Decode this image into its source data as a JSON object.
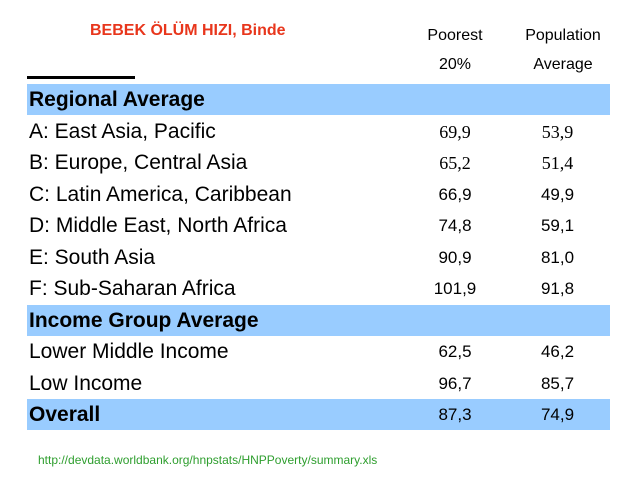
{
  "title": "BEBEK ÖLÜM HIZI, Binde",
  "columns": {
    "poorest_line1": "Poorest",
    "poorest_line2": "20%",
    "population_line1": "Population",
    "population_line2": "Average"
  },
  "chart_data": {
    "type": "table",
    "title": "BEBEK ÖLÜM HIZI, Binde",
    "columns": [
      "Poorest 20%",
      "Population Average"
    ],
    "rows": [
      {
        "label": "Regional Average",
        "section": true,
        "v1": "",
        "v2": ""
      },
      {
        "label": "A: East Asia, Pacific",
        "v1": "69,9",
        "v2": "53,9",
        "serif": true
      },
      {
        "label": "B: Europe, Central Asia",
        "v1": "65,2",
        "v2": "51,4",
        "serif": true
      },
      {
        "label": "C: Latin America, Caribbean",
        "v1": "66,9",
        "v2": "49,9"
      },
      {
        "label": "D: Middle East, North Africa",
        "v1": "74,8",
        "v2": "59,1"
      },
      {
        "label": "E: South Asia",
        "v1": "90,9",
        "v2": "81,0"
      },
      {
        "label": "F: Sub-Saharan Africa",
        "v1": "101,9",
        "v2": "91,8"
      },
      {
        "label": "Income Group Average",
        "section": true,
        "v1": "",
        "v2": ""
      },
      {
        "label": "Lower Middle Income",
        "v1": "62,5",
        "v2": "46,2"
      },
      {
        "label": "Low Income",
        "v1": "96,7",
        "v2": "85,7"
      },
      {
        "label": "Overall",
        "section": true,
        "v1": "87,3",
        "v2": "74,9"
      }
    ]
  },
  "source": "http://devdata.worldbank.org/hnpstats/HNPPoverty/summary.xls",
  "colors": {
    "title": "#e8361c",
    "band": "#99ccff",
    "source": "#2e9e2e"
  }
}
